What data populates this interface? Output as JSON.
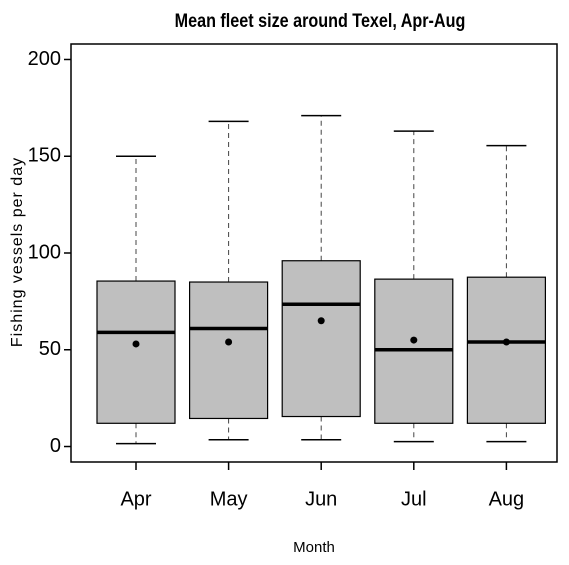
{
  "chart_data": {
    "type": "box",
    "title": "Mean fleet size around Texel, Apr-Aug",
    "xlabel": "Month",
    "ylabel": "Fishing vessels per day",
    "categories": [
      "Apr",
      "May",
      "Jun",
      "Jul",
      "Aug"
    ],
    "whisker_low": [
      1.5,
      3.5,
      3.5,
      2.5,
      2.5
    ],
    "q1": [
      12,
      14.5,
      15.5,
      12,
      12
    ],
    "median": [
      59,
      61,
      73.5,
      50,
      54
    ],
    "q3": [
      85.5,
      85,
      96,
      86.5,
      87.5
    ],
    "whisker_high": [
      150,
      168,
      171,
      163,
      155.5
    ],
    "mean": [
      53,
      54,
      65,
      55,
      54
    ],
    "color": "#bfbfbf",
    "ylim": [
      -8,
      208
    ],
    "yticks": [
      0,
      50,
      100,
      150,
      200
    ]
  }
}
